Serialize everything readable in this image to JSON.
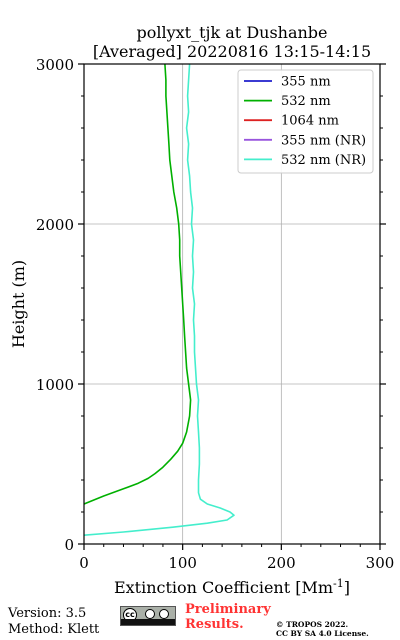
{
  "chart_data": {
    "type": "line",
    "title_line1": "pollyxt_tjk at Dushanbe",
    "title_line2": "[Averaged] 20220816 13:15-14:15",
    "xlabel": "Extinction Coefficient [Mm",
    "xlabel_sup": "-1",
    "xlabel_close": "]",
    "ylabel": "Height (m)",
    "xlim": [
      0,
      300
    ],
    "ylim": [
      0,
      3000
    ],
    "xticks": [
      "0",
      "100",
      "200",
      "300"
    ],
    "yticks": [
      "0",
      "1000",
      "2000",
      "3000"
    ],
    "grid": true,
    "legend_position": "top-right",
    "series": [
      {
        "name": "355 nm",
        "color": "#1f1fcc",
        "points": []
      },
      {
        "name": "532 nm",
        "color": "#00b000",
        "points": [
          [
            0,
            250
          ],
          [
            20,
            300
          ],
          [
            40,
            345
          ],
          [
            55,
            380
          ],
          [
            65,
            410
          ],
          [
            72,
            440
          ],
          [
            80,
            480
          ],
          [
            88,
            530
          ],
          [
            95,
            580
          ],
          [
            100,
            630
          ],
          [
            104,
            700
          ],
          [
            107,
            800
          ],
          [
            108,
            900
          ],
          [
            106,
            1000
          ],
          [
            104,
            1100
          ],
          [
            103,
            1200
          ],
          [
            102,
            1300
          ],
          [
            101,
            1400
          ],
          [
            100,
            1500
          ],
          [
            99,
            1600
          ],
          [
            98,
            1700
          ],
          [
            97,
            1800
          ],
          [
            97,
            1900
          ],
          [
            96,
            2000
          ],
          [
            94,
            2100
          ],
          [
            91,
            2200
          ],
          [
            89,
            2300
          ],
          [
            87,
            2400
          ],
          [
            86,
            2500
          ],
          [
            85,
            2600
          ],
          [
            84,
            2700
          ],
          [
            83,
            2800
          ],
          [
            83,
            2900
          ],
          [
            82,
            3000
          ]
        ]
      },
      {
        "name": "1064 nm",
        "color": "#dd2222",
        "points": []
      },
      {
        "name": "355 nm (NR)",
        "color": "#9955dd",
        "points": []
      },
      {
        "name": "532 nm (NR)",
        "color": "#44eecc",
        "points": [
          [
            0,
            55
          ],
          [
            40,
            75
          ],
          [
            90,
            105
          ],
          [
            125,
            130
          ],
          [
            145,
            150
          ],
          [
            152,
            180
          ],
          [
            148,
            200
          ],
          [
            138,
            225
          ],
          [
            125,
            250
          ],
          [
            118,
            280
          ],
          [
            116,
            320
          ],
          [
            116,
            400
          ],
          [
            117,
            500
          ],
          [
            117,
            600
          ],
          [
            116,
            700
          ],
          [
            115,
            800
          ],
          [
            116,
            900
          ],
          [
            114,
            1000
          ],
          [
            113,
            1100
          ],
          [
            112,
            1200
          ],
          [
            112,
            1300
          ],
          [
            111,
            1400
          ],
          [
            112,
            1500
          ],
          [
            110,
            1600
          ],
          [
            111,
            1700
          ],
          [
            110,
            1800
          ],
          [
            111,
            1900
          ],
          [
            109,
            2000
          ],
          [
            110,
            2100
          ],
          [
            108,
            2200
          ],
          [
            107,
            2300
          ],
          [
            105,
            2400
          ],
          [
            106,
            2500
          ],
          [
            104,
            2600
          ],
          [
            106,
            2700
          ],
          [
            105,
            2800
          ],
          [
            106,
            2900
          ],
          [
            107,
            3000
          ]
        ]
      }
    ]
  },
  "footer": {
    "version": "Version: 3.5",
    "method": "Method: Klett",
    "preliminary_line1": "Preliminary",
    "preliminary_line2": "Results.",
    "copyright_line1": "© TROPOS 2022.",
    "copyright_line2": "CC BY SA 4.0 License."
  }
}
